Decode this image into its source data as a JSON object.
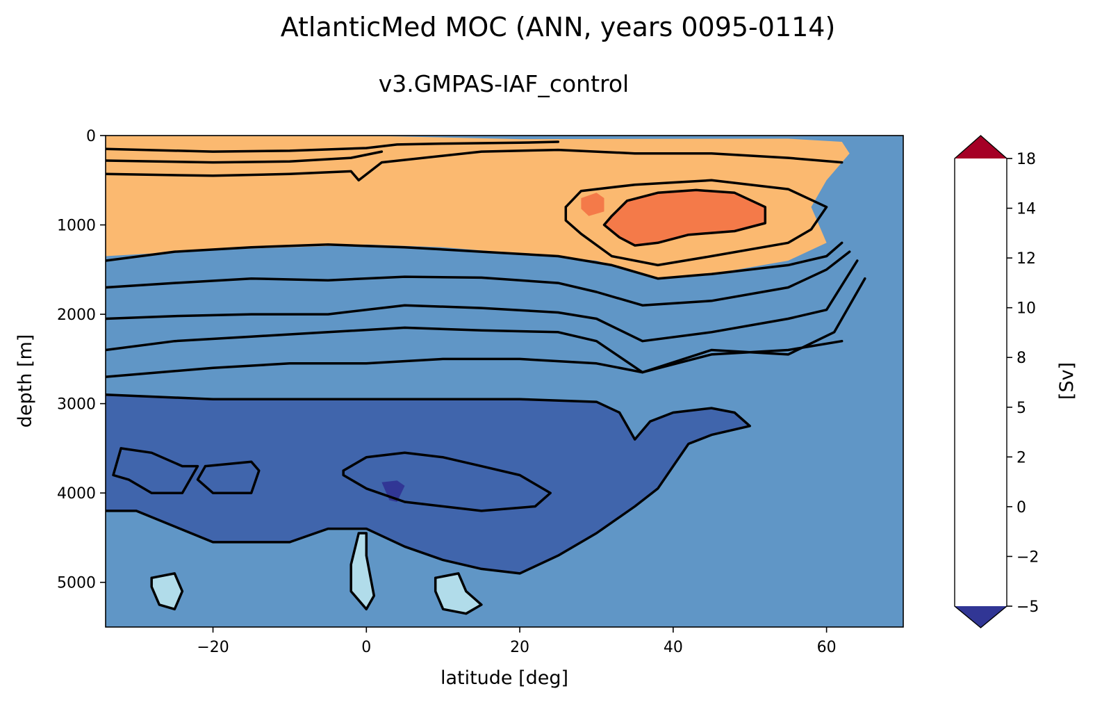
{
  "chart_data": {
    "type": "heatmap",
    "title": "AtlanticMed MOC (ANN, years 0095-0114)",
    "subtitle": "v3.GMPAS-IAF_control",
    "xlabel": "latitude [deg]",
    "ylabel": "depth [m]",
    "xlim": [
      -34,
      70
    ],
    "ylim": [
      5500,
      0
    ],
    "x_ticks": [
      -20,
      0,
      20,
      40,
      60
    ],
    "x_tick_labels": [
      "−20",
      "0",
      "20",
      "40",
      "60"
    ],
    "y_ticks": [
      0,
      1000,
      2000,
      3000,
      4000,
      5000
    ],
    "y_tick_labels": [
      "0",
      "1000",
      "2000",
      "3000",
      "4000",
      "5000"
    ],
    "colorbar": {
      "label": "[Sv]",
      "levels": [
        -5,
        -2,
        0,
        2,
        5,
        8,
        10,
        12,
        14,
        18
      ],
      "tick_labels": [
        "−5",
        "−2",
        "0",
        "2",
        "5",
        "8",
        "10",
        "12",
        "14",
        "18"
      ],
      "colors": [
        "#4065ac",
        "#6096c6",
        "#b1dcea",
        "#e9f5e3",
        "#fdeea8",
        "#fbb970",
        "#f47a49",
        "#d63a2c",
        "#b51d2a"
      ],
      "under_color": "#313695",
      "over_color": "#a50026",
      "extend": "both"
    },
    "background_value_color": "#6096c6",
    "regions": [
      {
        "value_band": "8 to 10",
        "color": "#fbb970",
        "points": [
          [
            -34,
            5
          ],
          [
            -20,
            5
          ],
          [
            -5,
            6
          ],
          [
            0,
            6
          ],
          [
            3,
            8
          ],
          [
            20,
            40
          ],
          [
            55,
            35
          ],
          [
            62,
            70
          ],
          [
            63,
            200
          ],
          [
            60,
            500
          ],
          [
            58,
            800
          ],
          [
            59,
            1000
          ],
          [
            60,
            1200
          ],
          [
            55,
            1400
          ],
          [
            45,
            1550
          ],
          [
            38,
            1600
          ],
          [
            30,
            1400
          ],
          [
            20,
            1320
          ],
          [
            10,
            1250
          ],
          [
            0,
            1220
          ],
          [
            -10,
            1250
          ],
          [
            -20,
            1280
          ],
          [
            -34,
            1350
          ]
        ]
      },
      {
        "value_band": "10 to 12",
        "color": "#f47a49",
        "points": [
          [
            32,
            900
          ],
          [
            34,
            730
          ],
          [
            38,
            640
          ],
          [
            43,
            610
          ],
          [
            48,
            640
          ],
          [
            52,
            800
          ],
          [
            52,
            980
          ],
          [
            48,
            1070
          ],
          [
            42,
            1110
          ],
          [
            38,
            1200
          ],
          [
            35,
            1230
          ],
          [
            33,
            1140
          ],
          [
            31,
            1000
          ]
        ]
      },
      {
        "value_band": "10 to 12",
        "color": "#f47a49",
        "points": [
          [
            28,
            700
          ],
          [
            30,
            640
          ],
          [
            31,
            700
          ],
          [
            31,
            850
          ],
          [
            29,
            900
          ],
          [
            28,
            820
          ]
        ]
      },
      {
        "value_band": "-5 to -2",
        "color": "#4065ac",
        "points": [
          [
            -34,
            2900
          ],
          [
            -20,
            2950
          ],
          [
            -5,
            2950
          ],
          [
            5,
            2950
          ],
          [
            20,
            2950
          ],
          [
            30,
            2980
          ],
          [
            33,
            3100
          ],
          [
            35,
            3400
          ],
          [
            37,
            3200
          ],
          [
            40,
            3100
          ],
          [
            45,
            3050
          ],
          [
            48,
            3100
          ],
          [
            50,
            3250
          ],
          [
            45,
            3350
          ],
          [
            42,
            3450
          ],
          [
            40,
            3700
          ],
          [
            38,
            3950
          ],
          [
            35,
            4150
          ],
          [
            30,
            4450
          ],
          [
            25,
            4700
          ],
          [
            20,
            4900
          ],
          [
            15,
            4850
          ],
          [
            10,
            4750
          ],
          [
            5,
            4600
          ],
          [
            0,
            4400
          ],
          [
            -5,
            4400
          ],
          [
            -10,
            4550
          ],
          [
            -20,
            4550
          ],
          [
            -30,
            4200
          ],
          [
            -34,
            4200
          ]
        ]
      },
      {
        "value_band": "< -5",
        "color": "#313695",
        "points": [
          [
            2,
            3880
          ],
          [
            4,
            3860
          ],
          [
            5,
            3920
          ],
          [
            4,
            4100
          ],
          [
            3,
            4080
          ]
        ]
      },
      {
        "value_band": "0 to 2",
        "color": "#b1dcea",
        "points": [
          [
            -1,
            4450
          ],
          [
            0,
            4450
          ],
          [
            0,
            4700
          ],
          [
            1,
            5150
          ],
          [
            0,
            5300
          ],
          [
            -2,
            5100
          ],
          [
            -2,
            4800
          ]
        ]
      },
      {
        "value_band": "0 to 2",
        "color": "#b1dcea",
        "points": [
          [
            -28,
            4950
          ],
          [
            -25,
            4900
          ],
          [
            -24,
            5100
          ],
          [
            -25,
            5300
          ],
          [
            -27,
            5250
          ],
          [
            -28,
            5050
          ]
        ]
      },
      {
        "value_band": "0 to 2",
        "color": "#b1dcea",
        "points": [
          [
            9,
            4950
          ],
          [
            12,
            4900
          ],
          [
            13,
            5100
          ],
          [
            15,
            5250
          ],
          [
            13,
            5350
          ],
          [
            10,
            5300
          ],
          [
            9,
            5100
          ]
        ]
      }
    ],
    "contour_lines": [
      [
        [
          -34,
          150
        ],
        [
          -20,
          180
        ],
        [
          -10,
          170
        ],
        [
          0,
          140
        ],
        [
          4,
          100
        ],
        [
          10,
          90
        ],
        [
          20,
          80
        ],
        [
          25,
          70
        ]
      ],
      [
        [
          -34,
          280
        ],
        [
          -20,
          300
        ],
        [
          -10,
          290
        ],
        [
          -2,
          250
        ],
        [
          2,
          180
        ]
      ],
      [
        [
          -34,
          430
        ],
        [
          -20,
          450
        ],
        [
          -10,
          430
        ],
        [
          -2,
          400
        ],
        [
          -1,
          500
        ],
        [
          2,
          300
        ],
        [
          15,
          180
        ],
        [
          25,
          160
        ],
        [
          35,
          200
        ],
        [
          45,
          200
        ],
        [
          55,
          250
        ],
        [
          62,
          300
        ]
      ],
      [
        [
          -34,
          1400
        ],
        [
          -25,
          1300
        ],
        [
          -15,
          1250
        ],
        [
          -5,
          1220
        ],
        [
          5,
          1250
        ],
        [
          15,
          1300
        ],
        [
          25,
          1350
        ],
        [
          32,
          1450
        ],
        [
          38,
          1600
        ],
        [
          45,
          1550
        ],
        [
          55,
          1450
        ],
        [
          60,
          1350
        ],
        [
          62,
          1200
        ]
      ],
      [
        [
          -34,
          1700
        ],
        [
          -25,
          1650
        ],
        [
          -15,
          1600
        ],
        [
          -5,
          1620
        ],
        [
          5,
          1580
        ],
        [
          15,
          1590
        ],
        [
          25,
          1650
        ],
        [
          30,
          1750
        ],
        [
          36,
          1900
        ],
        [
          45,
          1850
        ],
        [
          55,
          1700
        ],
        [
          60,
          1500
        ],
        [
          63,
          1300
        ]
      ],
      [
        [
          -34,
          2050
        ],
        [
          -25,
          2020
        ],
        [
          -15,
          2000
        ],
        [
          -5,
          2000
        ],
        [
          5,
          1900
        ],
        [
          15,
          1930
        ],
        [
          25,
          1980
        ],
        [
          30,
          2050
        ],
        [
          36,
          2300
        ],
        [
          45,
          2200
        ],
        [
          55,
          2050
        ],
        [
          60,
          1950
        ],
        [
          64,
          1400
        ]
      ],
      [
        [
          -34,
          2400
        ],
        [
          -25,
          2300
        ],
        [
          -15,
          2250
        ],
        [
          -5,
          2200
        ],
        [
          5,
          2150
        ],
        [
          15,
          2180
        ],
        [
          25,
          2200
        ],
        [
          30,
          2300
        ],
        [
          36,
          2650
        ],
        [
          45,
          2400
        ],
        [
          55,
          2450
        ],
        [
          61,
          2200
        ],
        [
          65,
          1600
        ]
      ],
      [
        [
          -34,
          2700
        ],
        [
          -20,
          2600
        ],
        [
          -10,
          2550
        ],
        [
          0,
          2550
        ],
        [
          10,
          2500
        ],
        [
          20,
          2500
        ],
        [
          30,
          2550
        ],
        [
          36,
          2650
        ],
        [
          45,
          2450
        ],
        [
          55,
          2400
        ],
        [
          62,
          2300
        ]
      ],
      [
        [
          32,
          900
        ],
        [
          34,
          730
        ],
        [
          38,
          640
        ],
        [
          43,
          610
        ],
        [
          48,
          640
        ],
        [
          52,
          800
        ],
        [
          52,
          980
        ],
        [
          48,
          1070
        ],
        [
          42,
          1110
        ],
        [
          38,
          1200
        ],
        [
          35,
          1230
        ],
        [
          33,
          1140
        ],
        [
          31,
          1000
        ],
        [
          32,
          900
        ]
      ],
      [
        [
          26,
          800
        ],
        [
          28,
          620
        ],
        [
          30,
          600
        ],
        [
          35,
          550
        ],
        [
          45,
          500
        ],
        [
          55,
          600
        ],
        [
          60,
          800
        ],
        [
          58,
          1050
        ],
        [
          55,
          1200
        ],
        [
          45,
          1350
        ],
        [
          38,
          1450
        ],
        [
          32,
          1350
        ],
        [
          28,
          1100
        ],
        [
          26,
          950
        ],
        [
          26,
          800
        ]
      ],
      [
        [
          -34,
          2900
        ],
        [
          -20,
          2950
        ],
        [
          -5,
          2950
        ],
        [
          5,
          2950
        ],
        [
          20,
          2950
        ],
        [
          30,
          2980
        ],
        [
          33,
          3100
        ],
        [
          35,
          3400
        ],
        [
          37,
          3200
        ],
        [
          40,
          3100
        ],
        [
          45,
          3050
        ],
        [
          48,
          3100
        ],
        [
          50,
          3250
        ],
        [
          45,
          3350
        ],
        [
          42,
          3450
        ],
        [
          40,
          3700
        ],
        [
          38,
          3950
        ],
        [
          35,
          4150
        ],
        [
          30,
          4450
        ],
        [
          25,
          4700
        ],
        [
          20,
          4900
        ],
        [
          15,
          4850
        ],
        [
          10,
          4750
        ],
        [
          5,
          4600
        ],
        [
          0,
          4400
        ],
        [
          -5,
          4400
        ],
        [
          -10,
          4550
        ],
        [
          -20,
          4550
        ],
        [
          -30,
          4200
        ],
        [
          -34,
          4200
        ]
      ],
      [
        [
          -3,
          3750
        ],
        [
          0,
          3600
        ],
        [
          5,
          3550
        ],
        [
          10,
          3600
        ],
        [
          15,
          3700
        ],
        [
          20,
          3800
        ],
        [
          24,
          4000
        ],
        [
          22,
          4150
        ],
        [
          15,
          4200
        ],
        [
          5,
          4100
        ],
        [
          0,
          3950
        ],
        [
          -3,
          3800
        ],
        [
          -3,
          3750
        ]
      ],
      [
        [
          -32,
          3500
        ],
        [
          -28,
          3550
        ],
        [
          -24,
          3700
        ],
        [
          -22,
          3700
        ],
        [
          -24,
          4000
        ],
        [
          -28,
          4000
        ],
        [
          -31,
          3850
        ],
        [
          -33,
          3800
        ],
        [
          -32,
          3500
        ]
      ],
      [
        [
          -21,
          3700
        ],
        [
          -15,
          3650
        ],
        [
          -14,
          3750
        ],
        [
          -15,
          4000
        ],
        [
          -20,
          4000
        ],
        [
          -22,
          3850
        ],
        [
          -21,
          3700
        ]
      ],
      [
        [
          -1,
          4450
        ],
        [
          0,
          4450
        ],
        [
          0,
          4700
        ],
        [
          1,
          5150
        ],
        [
          0,
          5300
        ],
        [
          -2,
          5100
        ],
        [
          -2,
          4800
        ],
        [
          -1,
          4450
        ]
      ],
      [
        [
          -28,
          4950
        ],
        [
          -25,
          4900
        ],
        [
          -24,
          5100
        ],
        [
          -25,
          5300
        ],
        [
          -27,
          5250
        ],
        [
          -28,
          5050
        ],
        [
          -28,
          4950
        ]
      ],
      [
        [
          9,
          4950
        ],
        [
          12,
          4900
        ],
        [
          13,
          5100
        ],
        [
          15,
          5250
        ],
        [
          13,
          5350
        ],
        [
          10,
          5300
        ],
        [
          9,
          5100
        ],
        [
          9,
          4950
        ]
      ]
    ]
  }
}
